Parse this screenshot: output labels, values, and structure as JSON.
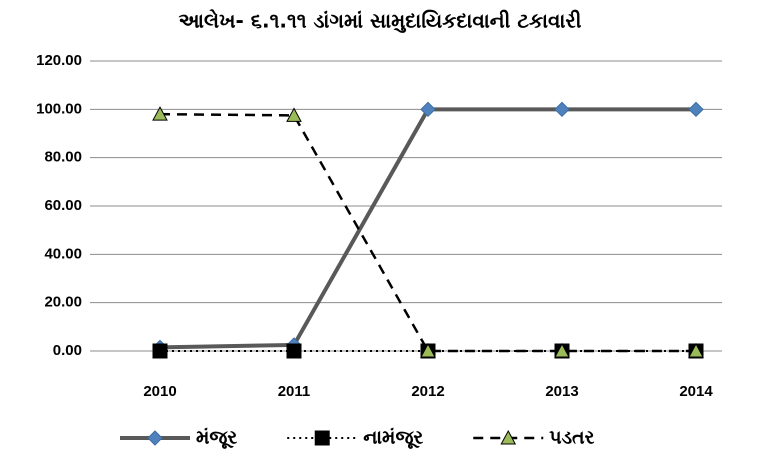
{
  "chart_data": {
    "type": "line",
    "title": "આલેખ- ૬.૧.૧૧ ડાંગમાં સામુદાયિકદાવાની ટકાવારી",
    "categories": [
      "2010",
      "2011",
      "2012",
      "2013",
      "2014"
    ],
    "series": [
      {
        "name": "મંજૂર",
        "color": "#595959",
        "marker_color": "#4f81bd",
        "style": "solid",
        "marker": "diamond",
        "values": [
          1.5,
          2.5,
          100,
          100,
          100
        ]
      },
      {
        "name": "નામંજૂર",
        "color": "#000000",
        "marker_color": "#000000",
        "style": "dotted",
        "marker": "square",
        "values": [
          0,
          0,
          0,
          0,
          0
        ]
      },
      {
        "name": "પડતર",
        "color": "#000000",
        "marker_color": "#9bbb59",
        "style": "dashed",
        "marker": "triangle",
        "values": [
          98,
          97.5,
          0,
          0,
          0
        ]
      }
    ],
    "ylim": [
      0,
      120
    ],
    "yticks": [
      {
        "value": 0,
        "label": "0.00"
      },
      {
        "value": 20,
        "label": "20.00"
      },
      {
        "value": 40,
        "label": "40.00"
      },
      {
        "value": 60,
        "label": "60.00"
      },
      {
        "value": 80,
        "label": "80.00"
      },
      {
        "value": 100,
        "label": "100.00"
      },
      {
        "value": 120,
        "label": "120.00"
      }
    ],
    "grid": true,
    "legend": "bottom"
  }
}
